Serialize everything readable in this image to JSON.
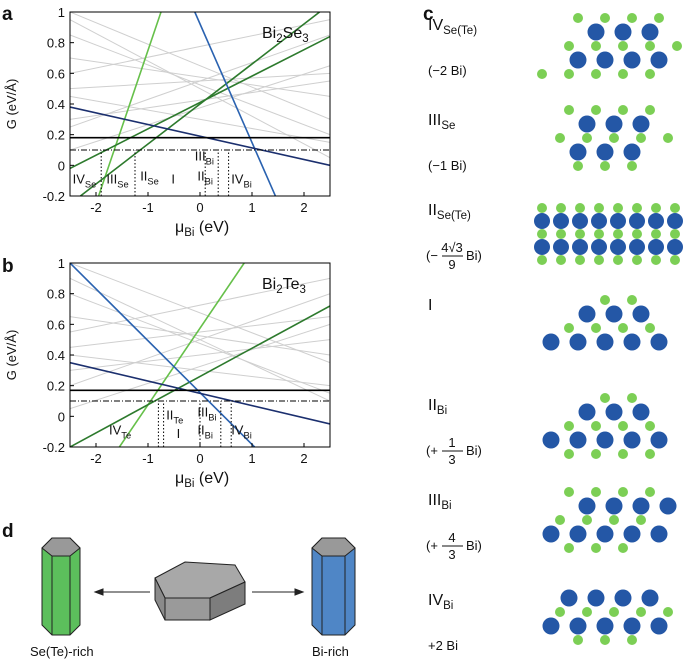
{
  "panel_labels": [
    "a",
    "b",
    "c",
    "d"
  ],
  "chart_data": [
    {
      "type": "line",
      "title_parts": [
        "Bi",
        "2",
        "Se",
        "3"
      ],
      "ylabel": "G (eV/Å)",
      "xlabel_parts": [
        "μ",
        "Bi",
        " (eV)"
      ],
      "xlim": [
        -2.5,
        2.5
      ],
      "ylim": [
        -0.2,
        1
      ],
      "xticks": [
        -2,
        -1,
        0,
        1,
        2
      ],
      "yticks": [
        -0.2,
        0,
        0.2,
        0.4,
        0.6,
        0.8,
        1
      ],
      "series": [
        {
          "color": "#cfcfcf",
          "x": [
            -2.5,
            2.5
          ],
          "values": [
            0.95,
            0.05
          ]
        },
        {
          "color": "#cfcfcf",
          "x": [
            -2.5,
            2.5
          ],
          "values": [
            0.7,
            0.45
          ]
        },
        {
          "color": "#cfcfcf",
          "x": [
            -2.5,
            2.5
          ],
          "values": [
            0.25,
            0.85
          ]
        },
        {
          "color": "#cfcfcf",
          "x": [
            -2.5,
            2.5
          ],
          "values": [
            1,
            0.3
          ]
        },
        {
          "color": "#cfcfcf",
          "x": [
            -2.5,
            2.5
          ],
          "values": [
            0.5,
            0.6
          ]
        },
        {
          "color": "#cfcfcf",
          "x": [
            -2.5,
            2.5
          ],
          "values": [
            0.85,
            0.2
          ]
        },
        {
          "color": "#cfcfcf",
          "x": [
            -2.5,
            2.5
          ],
          "values": [
            0.1,
            0.65
          ]
        },
        {
          "color": "#cfcfcf",
          "x": [
            -2.5,
            2.5
          ],
          "values": [
            0.6,
            0.95
          ]
        },
        {
          "color": "#cfcfcf",
          "x": [
            -2.5,
            2.5
          ],
          "values": [
            0.45,
            0.15
          ]
        },
        {
          "color": "#cfcfcf",
          "x": [
            -2.5,
            2.5
          ],
          "values": [
            0.3,
            0.55
          ]
        },
        {
          "color": "#66c04a",
          "x": [
            -1.95,
            -0.75
          ],
          "values": [
            -0.2,
            1
          ]
        },
        {
          "color": "#2d7a2d",
          "x": [
            -2.3,
            2.3
          ],
          "values": [
            -0.2,
            1
          ]
        },
        {
          "color": "#2d7a2d",
          "x": [
            -2.5,
            2.5
          ],
          "values": [
            -0.02,
            0.84
          ]
        },
        {
          "color": "#2a62b0",
          "x": [
            -0.1,
            1.45
          ],
          "values": [
            1,
            -0.2
          ]
        },
        {
          "color": "#1b2f6e",
          "x": [
            -2.5,
            2.5
          ],
          "values": [
            0.38,
            0
          ]
        },
        {
          "color": "#000000",
          "x": [
            -2.5,
            2.5
          ],
          "values": [
            0.18,
            0.18
          ]
        },
        {
          "color": "#000000",
          "dash": "dashdot",
          "x": [
            -2.5,
            2.5
          ],
          "values": [
            0.1,
            0.1
          ]
        },
        {
          "color": "#000000",
          "dash": "dotted",
          "x": [
            -1.9,
            -1.9
          ],
          "values": [
            -0.2,
            0.1
          ]
        },
        {
          "color": "#000000",
          "dash": "dotted",
          "x": [
            -1.25,
            -1.25
          ],
          "values": [
            -0.2,
            0.1
          ]
        },
        {
          "color": "#000000",
          "dash": "dotted",
          "x": [
            0.1,
            0.1
          ],
          "values": [
            -0.2,
            0.1
          ]
        },
        {
          "color": "#000000",
          "dash": "dotted",
          "x": [
            0.35,
            0.35
          ],
          "values": [
            -0.2,
            0.1
          ]
        },
        {
          "color": "#000000",
          "dash": "dotted",
          "x": [
            0.55,
            0.55
          ],
          "values": [
            -0.2,
            0.1
          ]
        }
      ],
      "labels": [
        {
          "text": "IV",
          "sub": "Se"
        },
        {
          "text": "III",
          "sub": "Se"
        },
        {
          "text": "II",
          "sub": "Se"
        },
        {
          "text": "I"
        },
        {
          "text": "III",
          "sub": "Bi"
        },
        {
          "text": "II",
          "sub": "Bi"
        },
        {
          "text": "IV",
          "sub": "Bi"
        }
      ]
    },
    {
      "type": "line",
      "title_parts": [
        "Bi",
        "2",
        "Te",
        "3"
      ],
      "ylabel": "G (eV/Å)",
      "xlabel_parts": [
        "μ",
        "Bi",
        " (eV)"
      ],
      "xlim": [
        -2.5,
        2.5
      ],
      "ylim": [
        -0.2,
        1
      ],
      "xticks": [
        -2,
        -1,
        0,
        1,
        2
      ],
      "yticks": [
        -0.2,
        0,
        0.2,
        0.4,
        0.6,
        0.8,
        1
      ],
      "series": [
        {
          "color": "#cfcfcf",
          "x": [
            -2.5,
            2.5
          ],
          "values": [
            0.9,
            0.1
          ]
        },
        {
          "color": "#cfcfcf",
          "x": [
            -2.5,
            2.5
          ],
          "values": [
            0.65,
            0.4
          ]
        },
        {
          "color": "#cfcfcf",
          "x": [
            -2.5,
            2.5
          ],
          "values": [
            0.2,
            0.8
          ]
        },
        {
          "color": "#cfcfcf",
          "x": [
            -2.5,
            2.5
          ],
          "values": [
            1,
            0.35
          ]
        },
        {
          "color": "#cfcfcf",
          "x": [
            -2.5,
            2.5
          ],
          "values": [
            0.45,
            0.65
          ]
        },
        {
          "color": "#cfcfcf",
          "x": [
            -2.5,
            2.5
          ],
          "values": [
            0.8,
            0.15
          ]
        },
        {
          "color": "#cfcfcf",
          "x": [
            -2.5,
            2.5
          ],
          "values": [
            0.05,
            0.6
          ]
        },
        {
          "color": "#cfcfcf",
          "x": [
            -2.5,
            2.5
          ],
          "values": [
            0.55,
            0.9
          ]
        },
        {
          "color": "#cfcfcf",
          "x": [
            -2.5,
            2.5
          ],
          "values": [
            0.4,
            0.2
          ]
        },
        {
          "color": "#cfcfcf",
          "x": [
            -2.5,
            2.5
          ],
          "values": [
            0.3,
            0.5
          ]
        },
        {
          "color": "#66c04a",
          "x": [
            -1.55,
            0.85
          ],
          "values": [
            -0.2,
            1
          ]
        },
        {
          "color": "#2d7a2d",
          "x": [
            -2.5,
            2.5
          ],
          "values": [
            -0.2,
            0.72
          ]
        },
        {
          "color": "#2a62b0",
          "x": [
            -2.5,
            1.05
          ],
          "values": [
            1,
            -0.2
          ]
        },
        {
          "color": "#1b2f6e",
          "x": [
            -2.5,
            2.5
          ],
          "values": [
            0.35,
            -0.05
          ]
        },
        {
          "color": "#000000",
          "x": [
            -2.5,
            2.5
          ],
          "values": [
            0.17,
            0.17
          ]
        },
        {
          "color": "#000000",
          "dash": "dashdot",
          "x": [
            -2.5,
            2.5
          ],
          "values": [
            0.1,
            0.1
          ]
        },
        {
          "color": "#000000",
          "dash": "dotted",
          "x": [
            -0.8,
            -0.8
          ],
          "values": [
            -0.2,
            0.1
          ]
        },
        {
          "color": "#000000",
          "dash": "dotted",
          "x": [
            -0.7,
            -0.7
          ],
          "values": [
            -0.2,
            0.1
          ]
        },
        {
          "color": "#000000",
          "dash": "dotted",
          "x": [
            0,
            0
          ],
          "values": [
            -0.2,
            0.1
          ]
        },
        {
          "color": "#000000",
          "dash": "dotted",
          "x": [
            0.4,
            0.4
          ],
          "values": [
            -0.2,
            0.1
          ]
        },
        {
          "color": "#000000",
          "dash": "dotted",
          "x": [
            0.6,
            0.6
          ],
          "values": [
            -0.2,
            0.1
          ]
        }
      ],
      "labels": [
        {
          "text": "IV",
          "sub": "Te"
        },
        {
          "text": "II",
          "sub": "Te"
        },
        {
          "text": "I"
        },
        {
          "text": "III",
          "sub": "Bi"
        },
        {
          "text": "II",
          "sub": "Bi"
        },
        {
          "text": "IV",
          "sub": "Bi"
        }
      ]
    }
  ],
  "panel_c": {
    "rows": [
      {
        "label": "IV",
        "sub": "Se(Te)",
        "note": "(−2 Bi)"
      },
      {
        "label": "III",
        "sub": "Se",
        "note": "(−1 Bi)"
      },
      {
        "label": "II",
        "sub": "Se(Te)",
        "fraction": {
          "before": "(−",
          "num": "4√3",
          "den": "9",
          "after": "Bi)"
        }
      },
      {
        "label": "I"
      },
      {
        "label": "II",
        "sub": "Bi",
        "fraction": {
          "before": "(+",
          "num": "1",
          "den": "3",
          "after": "Bi)"
        }
      },
      {
        "label": "III",
        "sub": "Bi",
        "fraction": {
          "before": "(+",
          "num": "4",
          "den": "3",
          "after": "Bi)"
        }
      },
      {
        "label": "IV",
        "sub": "Bi",
        "note": "+2 Bi"
      }
    ]
  },
  "panel_d": {
    "left": "Se(Te)-rich",
    "right": "Bi-rich"
  }
}
